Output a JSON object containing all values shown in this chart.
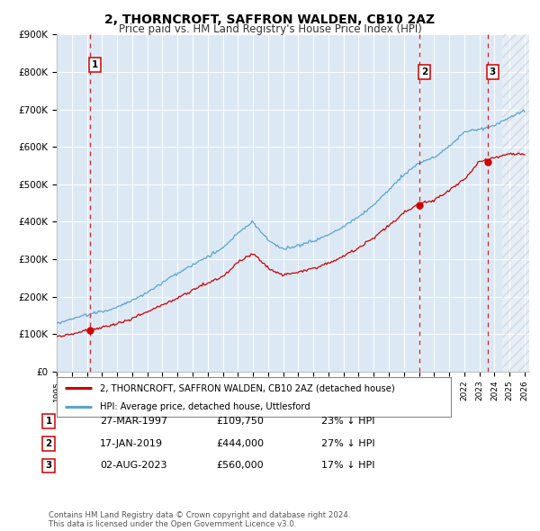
{
  "title": "2, THORNCROFT, SAFFRON WALDEN, CB10 2AZ",
  "subtitle": "Price paid vs. HM Land Registry's House Price Index (HPI)",
  "title_fontsize": 10,
  "subtitle_fontsize": 8.5,
  "plot_bg_color": "#dce9f5",
  "ylim": [
    0,
    900000
  ],
  "yticks": [
    0,
    100000,
    200000,
    300000,
    400000,
    500000,
    600000,
    700000,
    800000,
    900000
  ],
  "ytick_labels": [
    "£0",
    "£100K",
    "£200K",
    "£300K",
    "£400K",
    "£500K",
    "£600K",
    "£700K",
    "£800K",
    "£900K"
  ],
  "xlim_start": 1995.0,
  "xlim_end": 2026.3,
  "sales": [
    {
      "date_num": 1997.22,
      "price": 109750,
      "label": "1"
    },
    {
      "date_num": 2019.04,
      "price": 444000,
      "label": "2"
    },
    {
      "date_num": 2023.58,
      "price": 560000,
      "label": "3"
    }
  ],
  "sale_details": [
    {
      "label": "1",
      "date": "27-MAR-1997",
      "price": "£109,750",
      "hpi": "23% ↓ HPI"
    },
    {
      "label": "2",
      "date": "17-JAN-2019",
      "price": "£444,000",
      "hpi": "27% ↓ HPI"
    },
    {
      "label": "3",
      "date": "02-AUG-2023",
      "price": "£560,000",
      "hpi": "17% ↓ HPI"
    }
  ],
  "legend_entries": [
    "2, THORNCROFT, SAFFRON WALDEN, CB10 2AZ (detached house)",
    "HPI: Average price, detached house, Uttlesford"
  ],
  "footer": "Contains HM Land Registry data © Crown copyright and database right 2024.\nThis data is licensed under the Open Government Licence v3.0.",
  "hpi_color": "#5ba3d0",
  "sale_line_color": "#cc0000",
  "sale_dot_color": "#cc0000",
  "dashed_line_color": "#cc0000",
  "label_box_color": "#cc0000",
  "hpi_key_years": [
    1995,
    1996,
    1997,
    1998,
    1999,
    2000,
    2001,
    2002,
    2003,
    2004,
    2005,
    2006,
    2007,
    2008,
    2009,
    2010,
    2011,
    2012,
    2013,
    2014,
    2015,
    2016,
    2017,
    2018,
    2019,
    2020,
    2021,
    2022,
    2023,
    2024,
    2025,
    2026
  ],
  "hpi_key_vals": [
    128000,
    140000,
    152000,
    160000,
    172000,
    190000,
    210000,
    235000,
    258000,
    280000,
    300000,
    325000,
    365000,
    395000,
    345000,
    320000,
    330000,
    340000,
    360000,
    385000,
    410000,
    440000,
    480000,
    520000,
    555000,
    570000,
    600000,
    640000,
    650000,
    660000,
    680000,
    700000
  ],
  "prop_key_years": [
    1995,
    1996,
    1997,
    1998,
    1999,
    2000,
    2001,
    2002,
    2003,
    2004,
    2005,
    2006,
    2007,
    2008,
    2009,
    2010,
    2011,
    2012,
    2013,
    2014,
    2015,
    2016,
    2017,
    2018,
    2019,
    2020,
    2021,
    2022,
    2023,
    2024,
    2025
  ],
  "prop_key_vals": [
    93000,
    100000,
    109750,
    118000,
    128000,
    142000,
    160000,
    178000,
    198000,
    218000,
    235000,
    255000,
    290000,
    315000,
    275000,
    255000,
    263000,
    270000,
    285000,
    305000,
    325000,
    352000,
    385000,
    420000,
    444000,
    455000,
    480000,
    510000,
    560000,
    570000,
    580000
  ]
}
